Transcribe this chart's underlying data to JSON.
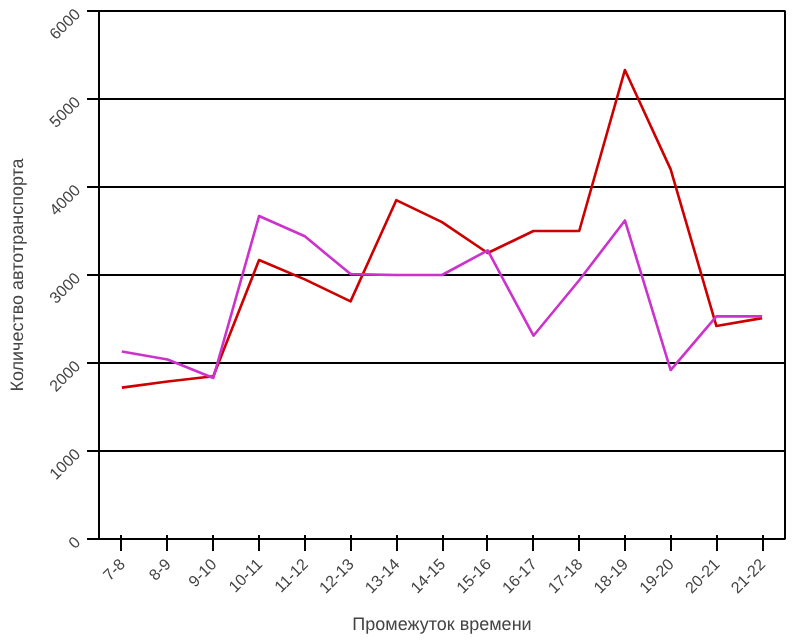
{
  "chart_data": {
    "type": "line",
    "xlabel": "Промежуток времени",
    "ylabel": "Количество автотранспорта",
    "categories": [
      "7-8",
      "8-9",
      "9-10",
      "10-11",
      "11-12",
      "12-13",
      "13-14",
      "14-15",
      "15-16",
      "16-17",
      "17-18",
      "18-19",
      "19-20",
      "20-21",
      "21-22"
    ],
    "series": [
      {
        "color": "#cc0000",
        "values": [
          1720,
          1790,
          1850,
          3170,
          2950,
          2700,
          3850,
          3600,
          3250,
          3500,
          3500,
          5330,
          4200,
          2420,
          2510
        ]
      },
      {
        "color": "#cc33cc",
        "values": [
          2130,
          2040,
          1830,
          3670,
          3440,
          3010,
          3000,
          3000,
          3280,
          2310,
          2940,
          3620,
          1920,
          2530,
          2530
        ]
      }
    ],
    "ylim": [
      0,
      6000
    ],
    "yticks": [
      0,
      1000,
      2000,
      3000,
      4000,
      5000,
      6000
    ],
    "grid": "y",
    "marker": "none",
    "line_style": "solid"
  }
}
